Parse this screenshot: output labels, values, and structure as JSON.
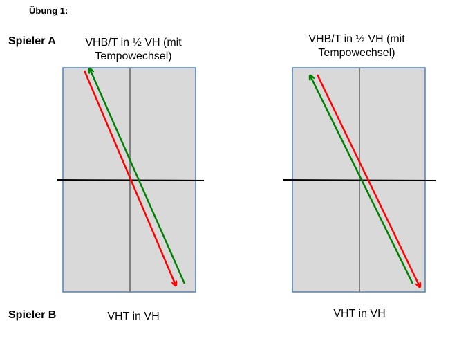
{
  "title": "Übung 1:",
  "players": {
    "a": "Spieler A",
    "b": "Spieler B"
  },
  "drills": [
    {
      "top_caption_line1": "VHB/T in ½ VH (mit",
      "top_caption_line2": "Tempowechsel)",
      "bottom_caption": "VHT in VH"
    },
    {
      "top_caption_line1": "VHB/T in ½ VH (mit",
      "top_caption_line2": "Tempowechsel)",
      "bottom_caption": "VHT in VH"
    }
  ],
  "colors": {
    "table_fill": "#d9d9d9",
    "table_border": "#4f81bd",
    "center_line": "#808080",
    "net": "#000000",
    "red_arrow": "#ff0000",
    "green_arrow": "#008000"
  }
}
